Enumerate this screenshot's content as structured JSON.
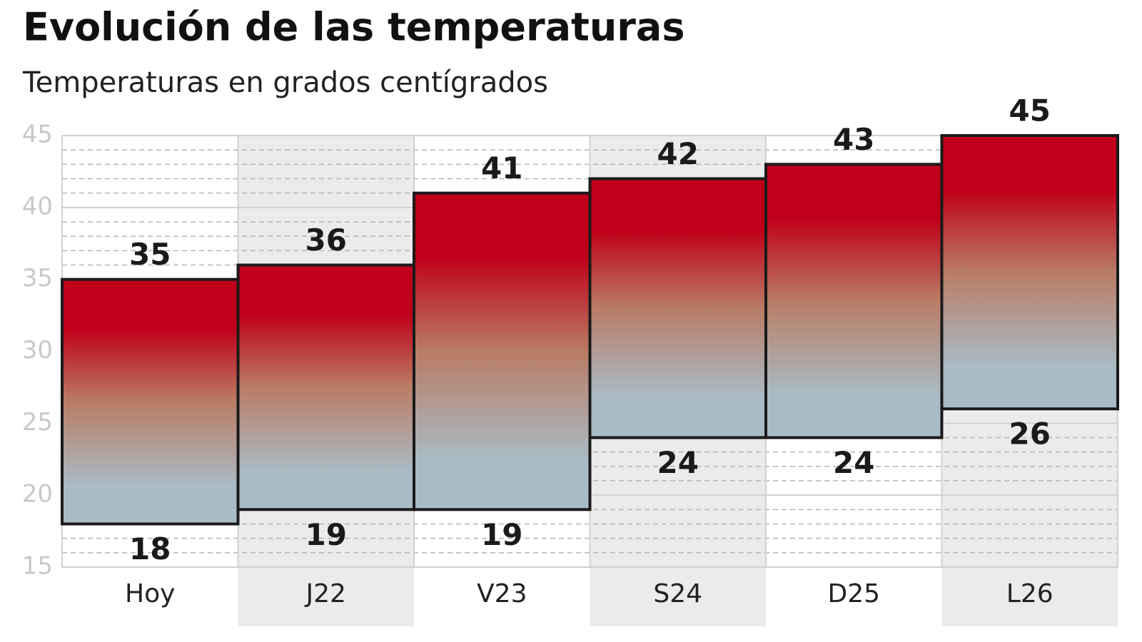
{
  "chart_data": {
    "type": "range-bar",
    "title": "Evolución de las temperaturas",
    "subtitle": "Temperaturas en grados centígrados",
    "categories": [
      "Hoy",
      "J22",
      "V23",
      "S24",
      "D25",
      "L26"
    ],
    "min": [
      18,
      19,
      19,
      24,
      24,
      26
    ],
    "max": [
      35,
      36,
      41,
      42,
      43,
      45
    ],
    "ylim": [
      15,
      45
    ],
    "yticks": [
      15,
      20,
      25,
      30,
      35,
      40,
      45
    ],
    "grid": true,
    "minor_grid": true,
    "colors": {
      "top": "#c0001a",
      "bottom": "#a9bcc6"
    }
  }
}
